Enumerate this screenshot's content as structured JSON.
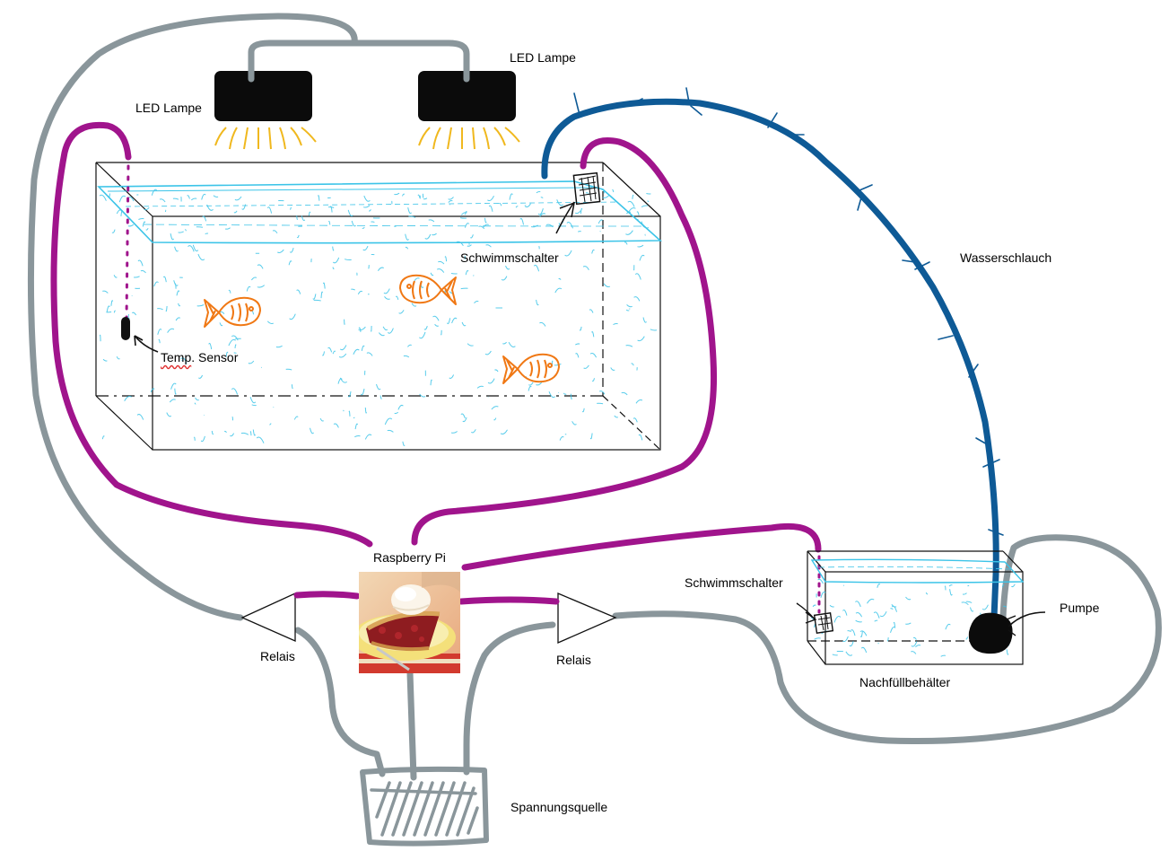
{
  "labels": {
    "led_lamp_left": "LED Lampe",
    "led_lamp_right": "LED Lampe",
    "float_switch_tank": "Schwimmschalter",
    "temp_sensor_prefix": "Temp",
    "temp_sensor_suffix": ". Sensor",
    "water_hose": "Wasserschlauch",
    "raspberry_pi": "Raspberry Pi",
    "relay_left": "Relais",
    "relay_right": "Relais",
    "float_switch_refill": "Schwimmschalter",
    "pump": "Pumpe",
    "refill_tank": "Nachfüllbehälter",
    "power_supply": "Spannungsquelle"
  },
  "colors": {
    "power_wire": "#8a969b",
    "signal_wire": "#a0148c",
    "water_hose": "#0e5a96",
    "water": "#3cc4e8",
    "fish": "#f07814",
    "lamp": "#0b0b0b",
    "light_rays": "#f0b81e"
  },
  "icons": [
    "led-lamp-icon",
    "fish-icon",
    "float-switch-icon",
    "temperature-sensor-icon",
    "pump-icon",
    "relay-icon",
    "power-supply-icon",
    "raspberry-pi-photo"
  ]
}
